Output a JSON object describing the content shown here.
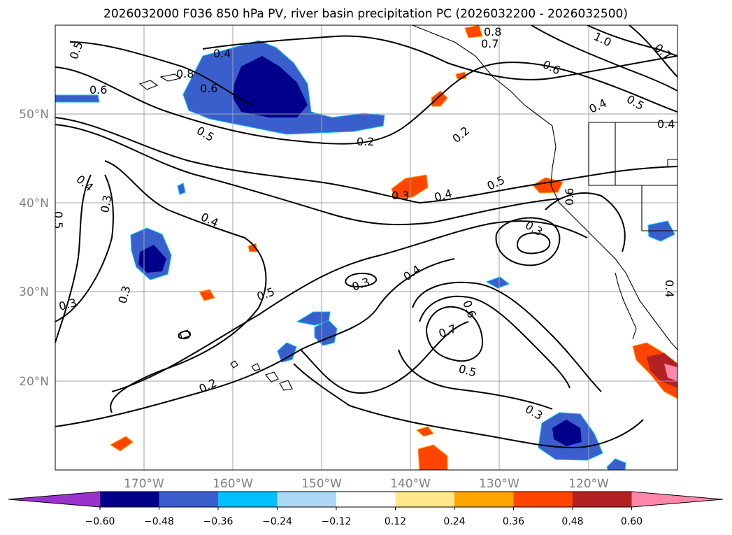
{
  "title": "2026032000 F036 850 hPa PV, river basin precipitation PC (2026032200 - 2026032500)",
  "lon_labels": [
    "170°W",
    "160°W",
    "150°W",
    "140°W",
    "130°W",
    "120°W"
  ],
  "lat_labels": [
    "50°N",
    "40°N",
    "30°N",
    "20°N"
  ],
  "colorbar": {
    "ticks": [
      "−0.60",
      "−0.48",
      "−0.36",
      "−0.24",
      "−0.12",
      "0.12",
      "0.24",
      "0.36",
      "0.48",
      "0.60"
    ],
    "colors": [
      "#9932cc",
      "#00008b",
      "#3a5fcd",
      "#00bfff",
      "#add8f5",
      "#ffffff",
      "#ffe88a",
      "#ffa500",
      "#ff4500",
      "#b22222",
      "#ff88aa"
    ]
  },
  "contour_labels": [
    "0.5",
    "0.6",
    "0.4",
    "0.6",
    "0.8",
    "0.7",
    "1.0",
    "0.8",
    "0.7",
    "0.6",
    "0.5",
    "0.4",
    "0.4",
    "0.2",
    "0.2",
    "0.5",
    "0.3",
    "0.4",
    "0.5",
    "0.6",
    "0.3",
    "0.4",
    "0.3",
    "0.4",
    "0.3",
    "0.3",
    "0.5",
    "0.3",
    "0.4",
    "0.6",
    "0.7",
    "0.5",
    "0.3",
    "0.2",
    "0.5",
    "0.4"
  ]
}
